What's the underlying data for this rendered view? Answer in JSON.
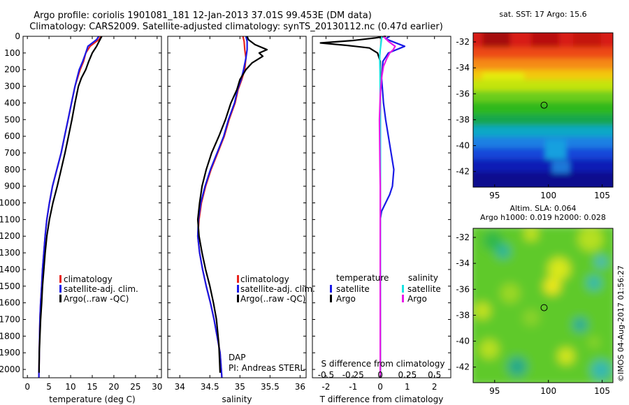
{
  "header": {
    "line1": "Argo profile: coriolis 1901081_181 12-Jan-2013 37.01S 99.453E (DM data)",
    "line2": "Climatology: CARS2009. Satellite-adjusted climatology: synTS_20130112.nc (0.47d earlier)"
  },
  "colors": {
    "climatology": "#e8231d",
    "satellite": "#1a1ae6",
    "argo": "#000000",
    "salinity_satellite": "#19e3e3",
    "salinity_argo": "#e81ae8"
  },
  "chart_data": [
    {
      "type": "line",
      "id": "temperature_profile",
      "xlabel": "temperature (deg C)",
      "xlim": [
        -1,
        31
      ],
      "xticks": [
        0,
        5,
        10,
        15,
        20,
        25,
        30
      ],
      "ylim": [
        0,
        2050
      ],
      "yticks": [
        0,
        100,
        200,
        300,
        400,
        500,
        600,
        700,
        800,
        900,
        1000,
        1100,
        1200,
        1300,
        1400,
        1500,
        1600,
        1700,
        1800,
        1900,
        2000
      ],
      "yreversed": true,
      "legend": [
        "climatology",
        "satellite-adj. clim.",
        "Argo(..raw -QC)"
      ],
      "series": [
        {
          "name": "climatology",
          "color": "#e8231d",
          "x": [
            17,
            16.5,
            14.5,
            13.5,
            13,
            12.2,
            11.6,
            11,
            10.2,
            9.4,
            8.6,
            7.8,
            6.8,
            5.8,
            5.1,
            4.5,
            4.1,
            3.8,
            3.5,
            3.3,
            3.05,
            2.9,
            2.75,
            2.65
          ],
          "y": [
            0,
            20,
            60,
            100,
            150,
            200,
            250,
            300,
            400,
            500,
            600,
            700,
            800,
            900,
            1000,
            1100,
            1200,
            1300,
            1400,
            1500,
            1600,
            1700,
            1900,
            2050
          ]
        },
        {
          "name": "satellite-adj. clim.",
          "color": "#1a1ae6",
          "x": [
            16.5,
            16,
            14,
            13.5,
            12.8,
            12,
            11.5,
            11,
            10.2,
            9.4,
            8.6,
            7.8,
            6.8,
            5.8,
            5.1,
            4.5,
            4.1,
            3.8,
            3.5,
            3.3,
            3.05,
            2.9,
            2.75,
            2.65
          ],
          "y": [
            0,
            20,
            60,
            100,
            150,
            200,
            250,
            300,
            400,
            500,
            600,
            700,
            800,
            900,
            1000,
            1100,
            1200,
            1300,
            1400,
            1500,
            1600,
            1700,
            1900,
            2050
          ]
        },
        {
          "name": "Argo(..raw -QC)",
          "color": "#000000",
          "x": [
            17.2,
            16.8,
            16,
            15,
            14.2,
            13.5,
            12.5,
            11.8,
            11,
            10.3,
            9.5,
            8.7,
            7.8,
            6.9,
            5.9,
            5.1,
            4.5,
            4.1,
            3.8,
            3.5,
            3.3,
            3.05,
            2.9,
            2.75,
            2.7
          ],
          "y": [
            0,
            20,
            60,
            100,
            150,
            200,
            250,
            300,
            400,
            500,
            600,
            700,
            800,
            900,
            1000,
            1100,
            1200,
            1300,
            1400,
            1500,
            1600,
            1700,
            1800,
            1900,
            2020
          ]
        }
      ],
      "annotations": []
    },
    {
      "type": "line",
      "id": "salinity_profile",
      "xlabel": "salinity",
      "xlim": [
        33.8,
        36.1
      ],
      "xticks": [
        34,
        34.5,
        35,
        35.5,
        36
      ],
      "ylim": [
        0,
        2050
      ],
      "yreversed": true,
      "legend": [
        "climatology",
        "satellite-adj. clim.",
        "Argo(..raw -QC)"
      ],
      "series": [
        {
          "name": "climatology",
          "color": "#e8231d",
          "x": [
            35.05,
            35.07,
            35.08,
            35.1,
            35.08,
            35.03,
            34.97,
            34.92,
            34.82,
            34.74,
            34.63,
            34.52,
            34.43,
            34.36,
            34.32,
            34.3,
            34.33,
            34.38,
            34.44,
            34.51,
            34.57,
            34.62,
            34.67,
            34.7
          ],
          "y": [
            0,
            30,
            80,
            130,
            200,
            260,
            320,
            400,
            500,
            600,
            700,
            800,
            900,
            1000,
            1100,
            1200,
            1300,
            1400,
            1500,
            1600,
            1700,
            1800,
            1900,
            2050
          ]
        },
        {
          "name": "satellite-adj. clim.",
          "color": "#1a1ae6",
          "x": [
            35.1,
            35.12,
            35.12,
            35.1,
            35.06,
            35.02,
            34.96,
            34.91,
            34.81,
            34.73,
            34.62,
            34.51,
            34.42,
            34.35,
            34.31,
            34.3,
            34.33,
            34.38,
            34.44,
            34.51,
            34.57,
            34.62,
            34.67,
            34.7
          ],
          "y": [
            0,
            30,
            80,
            130,
            200,
            260,
            320,
            400,
            500,
            600,
            700,
            800,
            900,
            1000,
            1100,
            1200,
            1300,
            1400,
            1500,
            1600,
            1700,
            1800,
            1900,
            2050
          ]
        },
        {
          "name": "Argo(..raw -QC)",
          "color": "#000000",
          "x": [
            35.12,
            35.14,
            35.25,
            35.45,
            35.32,
            35.38,
            35.2,
            35.1,
            35.0,
            34.95,
            34.85,
            34.76,
            34.65,
            34.53,
            34.44,
            34.37,
            34.33,
            34.3,
            34.32,
            34.37,
            34.43,
            34.5,
            34.56,
            34.61,
            34.65,
            34.67
          ],
          "y": [
            0,
            20,
            50,
            80,
            100,
            120,
            160,
            200,
            260,
            320,
            400,
            500,
            600,
            700,
            800,
            900,
            1000,
            1100,
            1200,
            1300,
            1400,
            1500,
            1600,
            1700,
            1850,
            2020
          ]
        }
      ],
      "annotations": [
        "DAP",
        "PI: Andreas STERL"
      ]
    },
    {
      "type": "line",
      "id": "difference_profile",
      "xlabel": "T difference from climatology",
      "xlabel2": "S difference from climatology",
      "xlim": [
        -2.5,
        2.6
      ],
      "xticks": [
        -2,
        -1,
        0,
        1,
        2
      ],
      "xticks_salinity": [
        -0.5,
        -0.25,
        0,
        0.25,
        0.5
      ],
      "ylim": [
        0,
        2050
      ],
      "yreversed": true,
      "legend_headers": [
        "temperature",
        "salinity"
      ],
      "legend": [
        "satellite",
        "Argo",
        "satellite",
        "Argo"
      ],
      "series": [
        {
          "name": "temperature satellite",
          "color": "#1a1ae6",
          "x": [
            0.35,
            0.2,
            0.5,
            0.9,
            0.3,
            0.1,
            0.05,
            0.12,
            0.2,
            0.3,
            0.4,
            0.5,
            0.45,
            0.35,
            0.2,
            0.05,
            0,
            0,
            0,
            0,
            0,
            0
          ],
          "y": [
            0,
            15,
            35,
            60,
            100,
            150,
            250,
            400,
            500,
            600,
            700,
            800,
            900,
            950,
            1000,
            1050,
            1100,
            1200,
            1400,
            1600,
            1800,
            2050
          ]
        },
        {
          "name": "temperature Argo",
          "color": "#000000",
          "x": [
            0.2,
            -0.2,
            -1.0,
            -2.2,
            -1.2,
            -0.4,
            -0.1,
            0,
            0,
            0,
            0,
            0,
            0,
            0,
            0,
            0,
            0
          ],
          "y": [
            0,
            10,
            25,
            40,
            55,
            70,
            100,
            150,
            250,
            400,
            600,
            800,
            1000,
            1200,
            1500,
            1800,
            2050
          ]
        },
        {
          "name": "salinity satellite",
          "color": "#19e3e3",
          "x": [
            0.06,
            0.04,
            0,
            -0.02,
            -0.01,
            0,
            0.01,
            0.01,
            0,
            0.005,
            0.01,
            0.01,
            0,
            0
          ],
          "y": [
            0,
            30,
            80,
            120,
            200,
            400,
            600,
            800,
            1000,
            1100,
            1200,
            1400,
            1700,
            2050
          ]
        },
        {
          "name": "salinity Argo",
          "color": "#e81ae8",
          "x": [
            0.12,
            0.3,
            0.55,
            0.48,
            0.35,
            0.25,
            0.12,
            0.05,
            0,
            -0.03,
            -0.02,
            -0.01,
            0,
            0,
            0
          ],
          "y": [
            0,
            30,
            60,
            80,
            100,
            130,
            180,
            250,
            350,
            500,
            650,
            800,
            900,
            1200,
            2050
          ]
        }
      ],
      "annotations": []
    },
    {
      "type": "heatmap",
      "id": "sst_map",
      "title": "sat. SST: 17 Argo: 15.6",
      "xlim": [
        93,
        106
      ],
      "ylim": [
        -43.2,
        -31.3
      ],
      "xticks": [
        95,
        100,
        105
      ],
      "yticks": [
        -32,
        -34,
        -36,
        -38,
        -40,
        -42
      ],
      "marker": {
        "lon": 99.453,
        "lat": -37.01
      }
    },
    {
      "type": "heatmap",
      "id": "sla_map",
      "title": "Altim. SLA: 0.064",
      "subtitle": "Argo h1000: 0.019 h2000: 0.028",
      "xlim": [
        93,
        106
      ],
      "ylim": [
        -43.2,
        -31.3
      ],
      "xticks": [
        95,
        100,
        105
      ],
      "yticks": [
        -32,
        -34,
        -36,
        -38,
        -40,
        -42
      ],
      "marker": {
        "lon": 99.453,
        "lat": -37.01
      }
    }
  ],
  "footer": {
    "credit": "©IMOS 04-Aug-2017 01:56:27"
  }
}
